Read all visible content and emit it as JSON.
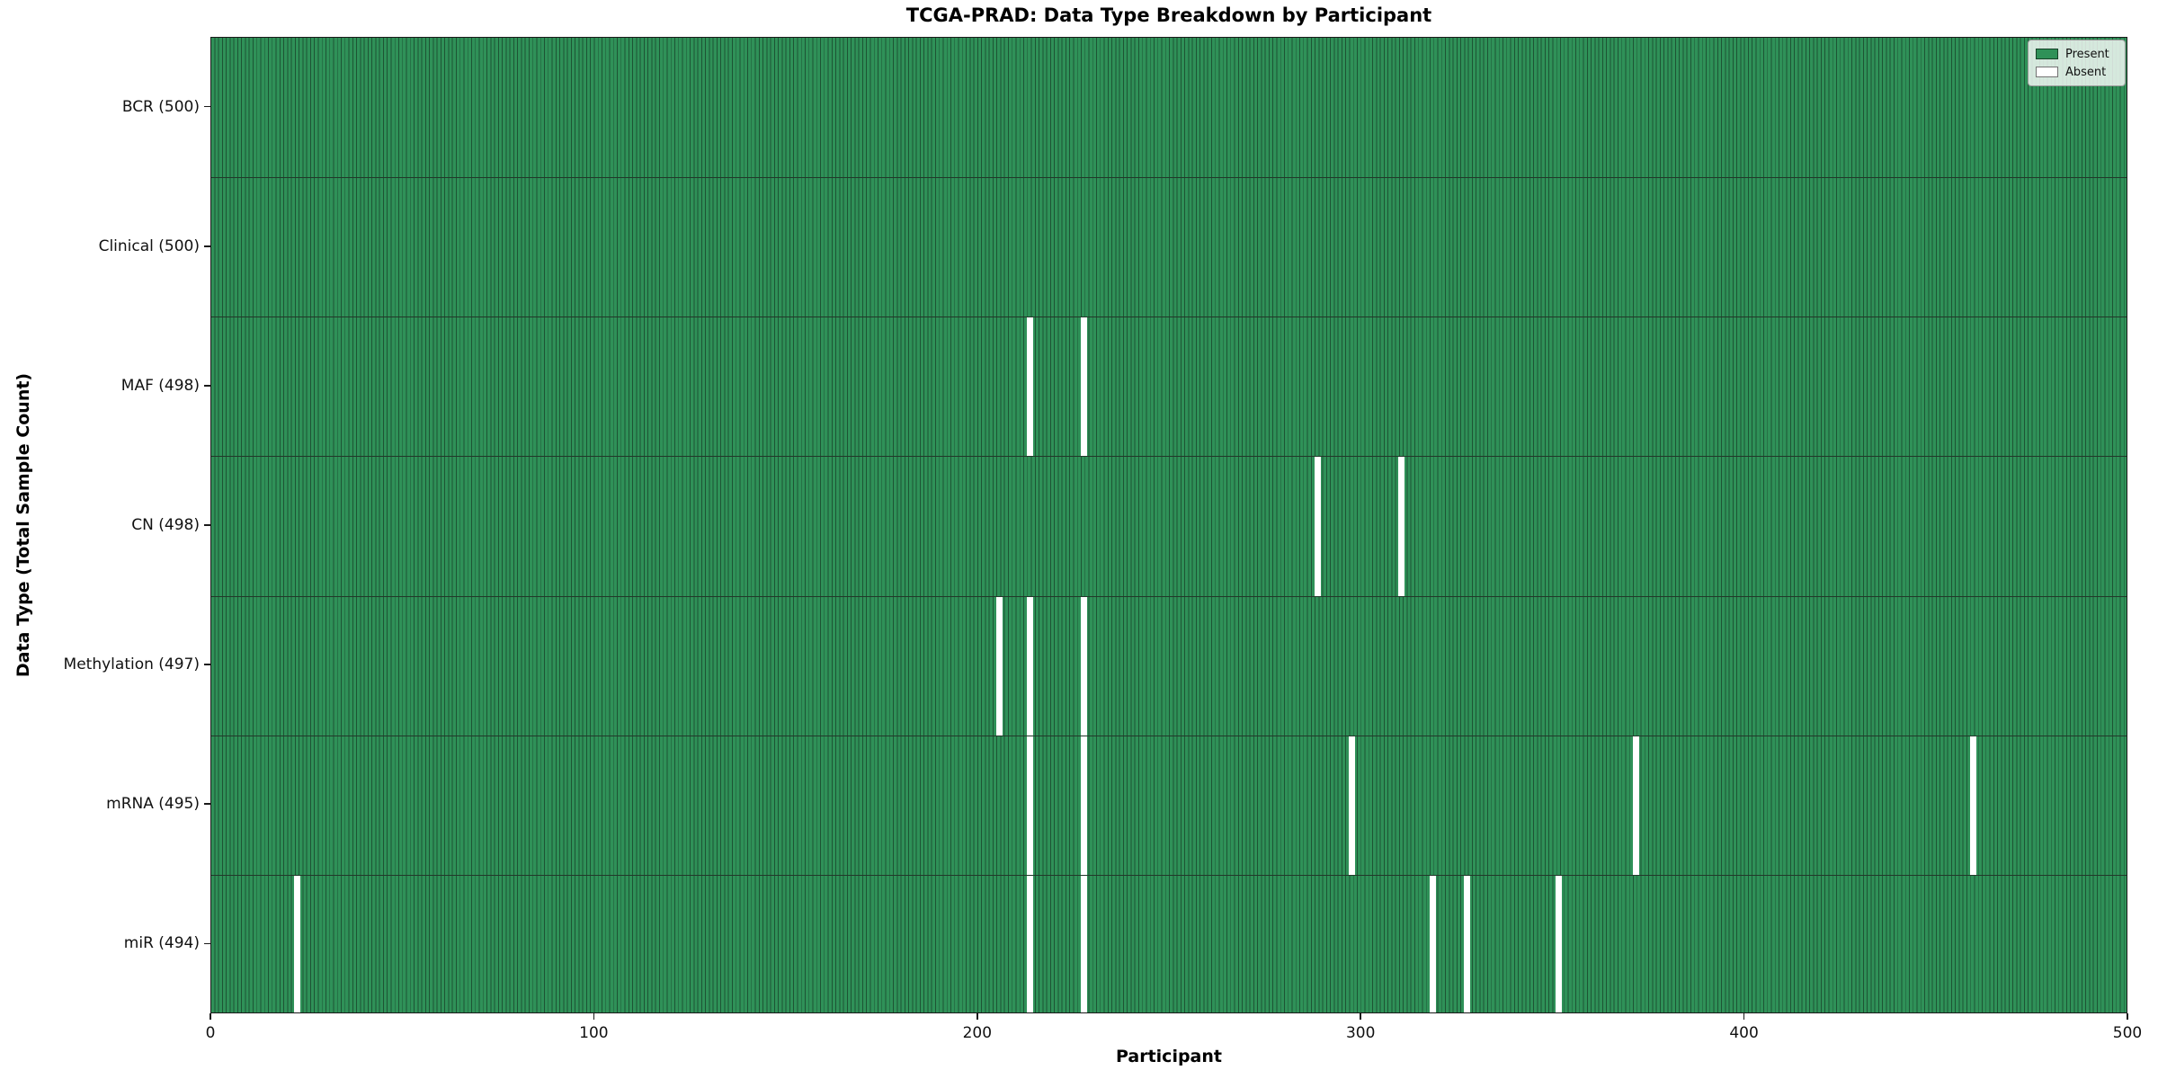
{
  "figure": {
    "title": "TCGA-PRAD: Data Type Breakdown by Participant",
    "xlabel": "Participant",
    "ylabel": "Data Type (Total Sample Count)"
  },
  "legend": {
    "present_label": "Present",
    "absent_label": "Absent"
  },
  "colors": {
    "present": "#2f9158",
    "bar_edge": "#1d5434",
    "absent": "#ffffff",
    "row_separator": "#22382a",
    "spine": "#1a1a1a",
    "legend_background": "rgba(255,255,255,0.8)",
    "legend_border": "#999999"
  },
  "chart_data": {
    "type": "heatmap",
    "title": "TCGA-PRAD: Data Type Breakdown by Participant",
    "xlabel": "Participant",
    "ylabel": "Data Type (Total Sample Count)",
    "x_range": [
      0,
      500
    ],
    "x_ticks": [
      0,
      100,
      200,
      300,
      400,
      500
    ],
    "n_participants": 500,
    "grid": false,
    "legend_position": "upper right",
    "legend": [
      {
        "label": "Present",
        "color": "#2f9158"
      },
      {
        "label": "Absent",
        "color": "#ffffff"
      }
    ],
    "rows": [
      {
        "label": "BCR (500)",
        "data_type": "BCR",
        "present_count": 500,
        "absent_participants": []
      },
      {
        "label": "Clinical (500)",
        "data_type": "Clinical",
        "present_count": 500,
        "absent_participants": []
      },
      {
        "label": "MAF (498)",
        "data_type": "MAF",
        "present_count": 498,
        "absent_participants": [
          213,
          227
        ]
      },
      {
        "label": "CN (498)",
        "data_type": "CN",
        "present_count": 498,
        "absent_participants": [
          288,
          310
        ]
      },
      {
        "label": "Methylation (497)",
        "data_type": "Methylation",
        "present_count": 497,
        "absent_participants": [
          205,
          213,
          227
        ]
      },
      {
        "label": "mRNA (495)",
        "data_type": "mRNA",
        "present_count": 495,
        "absent_participants": [
          213,
          227,
          297,
          371,
          459
        ]
      },
      {
        "label": "miR (494)",
        "data_type": "miR",
        "present_count": 494,
        "absent_participants": [
          22,
          213,
          227,
          318,
          327,
          351
        ]
      }
    ]
  }
}
